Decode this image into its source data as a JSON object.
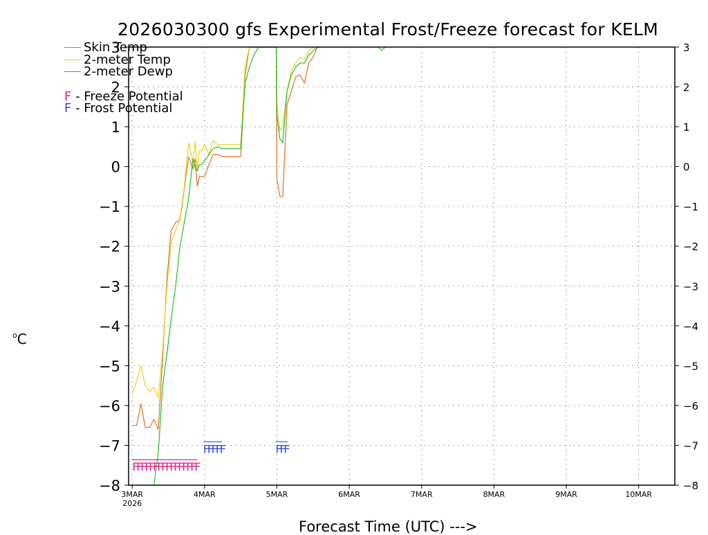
{
  "title": "2026030300 gfs Experimental Frost/Freeze forecast for KELM",
  "y_unit": "C",
  "y_unit_degree": "o",
  "xlabel": "Forecast Time (UTC) --->",
  "legend": {
    "skin": "Skin Temp",
    "temp2m": "2-meter Temp",
    "dewp2m": "2-meter Dewp",
    "freeze_letter": "F",
    "freeze_text": " - Freeze Potential",
    "frost_letter": "F",
    "frost_text": " - Frost Potential"
  },
  "colors": {
    "skin": "#e07020",
    "temp2m": "#e8d020",
    "dewp2m": "#20c020",
    "freeze": "#e0208c",
    "frost": "#3050e0",
    "grid": "#a0a0a0"
  },
  "chart_data": {
    "type": "line",
    "title": "2026030300 gfs Experimental Frost/Freeze forecast for KELM",
    "xlabel": "Forecast Time (UTC) --->",
    "ylabel": "°C",
    "x_unit": "days since 2026-03-03 00Z",
    "xlim": [
      -0.05,
      7.5
    ],
    "ylim": [
      -8,
      3
    ],
    "x_ticks": [
      0,
      1,
      2,
      3,
      4,
      5,
      6,
      7
    ],
    "x_tick_labels": [
      "3MAR",
      "4MAR",
      "5MAR",
      "6MAR",
      "7MAR",
      "8MAR",
      "9MAR",
      "10MAR"
    ],
    "x_tick_year": "2026",
    "y_ticks": [
      -8,
      -7,
      -6,
      -5,
      -4,
      -3,
      -2,
      -1,
      0,
      1,
      2,
      3
    ],
    "y_tick_labels": [
      "−8",
      "−7",
      "−6",
      "−5",
      "−4",
      "−3",
      "−2",
      "−1",
      "0",
      "1",
      "2",
      "3"
    ],
    "grid": true,
    "series": [
      {
        "name": "Skin Temp",
        "color_key": "skin",
        "x": [
          0,
          0.06,
          0.12,
          0.18,
          0.24,
          0.3,
          0.36,
          0.42,
          0.48,
          0.54,
          0.6,
          0.66,
          0.72,
          0.78,
          0.84,
          0.87,
          0.9,
          0.93,
          0.96,
          1.0,
          1.06,
          1.12,
          1.18,
          1.24,
          1.3,
          1.36,
          1.5,
          1.56,
          1.62,
          1.68,
          1.75,
          1.8,
          1.95,
          1.99,
          2.0,
          2.04,
          2.08,
          2.14,
          2.2,
          2.26,
          2.32,
          2.38,
          2.44,
          2.5,
          2.56,
          2.6
        ],
        "y": [
          -6.5,
          -6.5,
          -5.95,
          -6.55,
          -6.55,
          -6.35,
          -6.6,
          -4.8,
          -2.8,
          -1.6,
          -1.4,
          -1.35,
          -0.55,
          0.25,
          -0.05,
          0.2,
          -0.5,
          -0.25,
          -0.25,
          -0.25,
          0.05,
          0.3,
          0.3,
          0.25,
          0.25,
          0.25,
          0.25,
          2.3,
          3,
          3,
          3,
          3,
          3,
          3,
          -0.3,
          -0.75,
          -0.75,
          1.55,
          1.9,
          2.25,
          2.3,
          2.1,
          2.6,
          2.75,
          3,
          3
        ]
      },
      {
        "name": "2-meter Temp",
        "color_key": "temp2m",
        "x": [
          0,
          0.06,
          0.12,
          0.18,
          0.24,
          0.3,
          0.36,
          0.42,
          0.48,
          0.54,
          0.6,
          0.66,
          0.72,
          0.78,
          0.84,
          0.87,
          0.9,
          0.93,
          0.96,
          1.0,
          1.06,
          1.12,
          1.18,
          1.24,
          1.3,
          1.36,
          1.5,
          1.56,
          1.62,
          1.68,
          1.75,
          1.8,
          1.95,
          1.99,
          2.0,
          2.04,
          2.08,
          2.14,
          2.2,
          2.26,
          2.32,
          2.38,
          2.44,
          2.5,
          2.56,
          2.6
        ],
        "y": [
          -5.7,
          -5.4,
          -5.0,
          -5.5,
          -5.65,
          -5.55,
          -5.8,
          -4.6,
          -3.0,
          -1.9,
          -1.6,
          -1.3,
          -0.5,
          0.6,
          0.1,
          0.65,
          -0.1,
          0.4,
          0.4,
          0.55,
          0.3,
          0.65,
          0.55,
          0.55,
          0.55,
          0.55,
          0.55,
          2.5,
          3,
          3,
          3,
          3,
          3,
          3,
          1.6,
          0.9,
          1.0,
          1.9,
          2.4,
          2.6,
          2.75,
          2.7,
          2.9,
          3,
          3,
          3
        ]
      },
      {
        "name": "2-meter Dewp",
        "color_key": "dewp2m",
        "x": [
          0.3,
          0.36,
          0.42,
          0.48,
          0.54,
          0.6,
          0.66,
          0.72,
          0.78,
          0.84,
          0.87,
          0.9,
          0.93,
          0.96,
          1.0,
          1.06,
          1.12,
          1.18,
          1.24,
          1.3,
          1.36,
          1.5,
          1.56,
          1.62,
          1.68,
          1.75,
          1.8,
          1.95,
          1.99,
          2.0,
          2.04,
          2.08,
          2.14,
          2.2,
          2.26,
          2.32,
          2.38,
          2.44,
          2.5,
          2.56,
          2.6,
          3.4,
          3.45,
          3.5
        ],
        "y": [
          -8,
          -7.2,
          -5.5,
          -4.7,
          -3.8,
          -3.0,
          -2.0,
          -1.4,
          -0.8,
          0.2,
          -0.05,
          -0.1,
          0.05,
          0.05,
          0.15,
          0.3,
          0.45,
          0.5,
          0.45,
          0.45,
          0.45,
          0.45,
          2.1,
          2.5,
          2.8,
          3,
          3,
          3,
          3,
          1.3,
          0.7,
          0.6,
          1.9,
          2.3,
          2.5,
          2.6,
          2.6,
          2.8,
          2.9,
          3,
          3,
          3,
          2.92,
          3
        ]
      }
    ],
    "annotations": [
      {
        "label": "F",
        "meaning": "Freeze Potential",
        "color_key": "freeze",
        "x_start": 0.0,
        "x_end": 0.9,
        "y": -7.5
      },
      {
        "label": "F",
        "meaning": "Frost Potential",
        "color_key": "frost",
        "x_start": 0.98,
        "x_end": 1.24,
        "y": -7.05
      },
      {
        "label": "F",
        "meaning": "Frost Potential",
        "color_key": "frost",
        "x_start": 1.98,
        "x_end": 2.15,
        "y": -7.05
      }
    ]
  }
}
